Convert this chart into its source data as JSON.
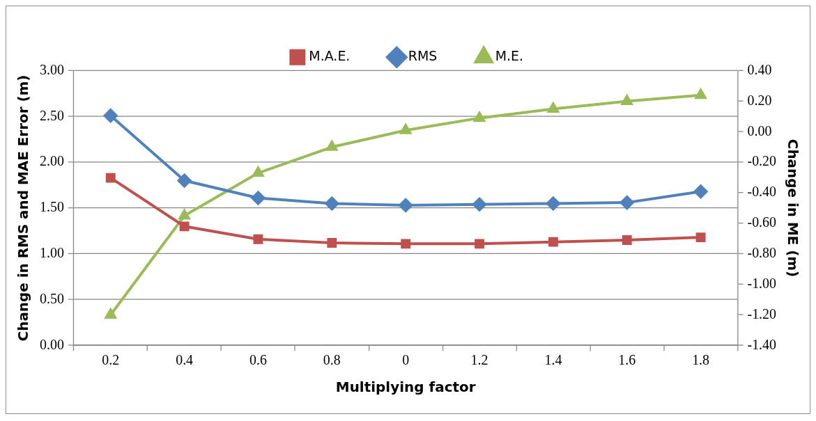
{
  "chart_data": {
    "type": "line",
    "xlabel": "Multiplying factor",
    "ylabel": "Change in RMS and MAE Error (m)",
    "y2label": "Change in ME (m)",
    "categories": [
      "0.2",
      "0.4",
      "0.6",
      "0.8",
      "0",
      "1.2",
      "1.4",
      "1.6",
      "1.8"
    ],
    "series": [
      {
        "name": "M.A.E.",
        "color": "#c0504d",
        "marker": "square",
        "values": [
          1.83,
          1.3,
          1.16,
          1.12,
          1.11,
          1.11,
          1.13,
          1.15,
          1.18
        ]
      },
      {
        "name": "RMS",
        "color": "#4f81bd",
        "marker": "diamond",
        "values": [
          2.51,
          1.8,
          1.61,
          1.55,
          1.53,
          1.54,
          1.55,
          1.56,
          1.68
        ]
      },
      {
        "name": "M.E.",
        "color": "#9bbb59",
        "marker": "triangle",
        "axis": "y2",
        "values": [
          -1.2,
          -0.55,
          -0.27,
          -0.1,
          0.01,
          0.09,
          0.15,
          0.2,
          0.24
        ]
      }
    ],
    "ylim": [
      0,
      3
    ],
    "yticks": [
      {
        "value": 0,
        "label": "0.00"
      },
      {
        "value": 0.5,
        "label": "0.50"
      },
      {
        "value": 1,
        "label": "1.00"
      },
      {
        "value": 1.5,
        "label": "1.50"
      },
      {
        "value": 2,
        "label": "2.00"
      },
      {
        "value": 2.5,
        "label": "2.50"
      },
      {
        "value": 3,
        "label": "3.00"
      }
    ],
    "y2lim": [
      -1.4,
      0.4
    ],
    "y2ticks": [
      {
        "value": -1.4,
        "label": "-1.40"
      },
      {
        "value": -1.2,
        "label": "-1.20"
      },
      {
        "value": -1,
        "label": "-1.00"
      },
      {
        "value": -0.8,
        "label": "-0.80"
      },
      {
        "value": -0.6,
        "label": "-0.60"
      },
      {
        "value": -0.4,
        "label": "-0.40"
      },
      {
        "value": -0.2,
        "label": "-0.20"
      },
      {
        "value": 0,
        "label": "0.00"
      },
      {
        "value": 0.2,
        "label": "0.20"
      },
      {
        "value": 0.4,
        "label": "0.40"
      }
    ],
    "grid": "y",
    "legend": "top",
    "line_style": "solid"
  }
}
